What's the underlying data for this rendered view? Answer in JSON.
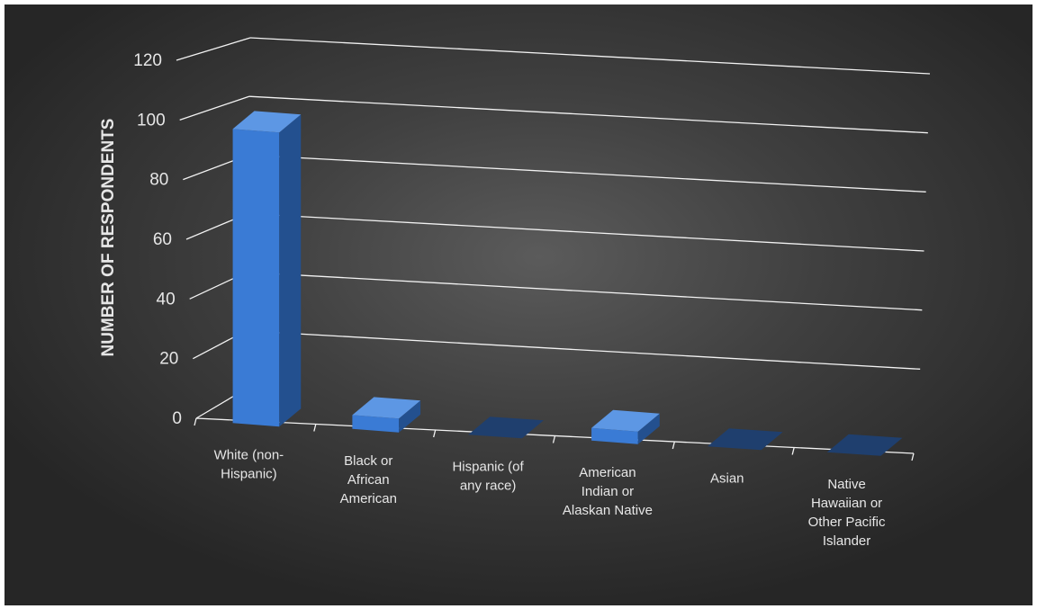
{
  "chart_data": {
    "type": "bar",
    "title": "",
    "xlabel": "",
    "ylabel": "NUMBER OF RESPONDENTS",
    "categories": [
      "White (non-Hispanic)",
      "Black or African American",
      "Hispanic (of any race)",
      "American Indian or Alaskan Native",
      "Asian",
      "Native Hawaiian or Other Pacific Islander"
    ],
    "category_label_lines": [
      [
        "White (non-",
        "Hispanic)"
      ],
      [
        "Black or",
        "African",
        "American"
      ],
      [
        "Hispanic (of",
        "any race)"
      ],
      [
        "American",
        "Indian or",
        "Alaskan Native"
      ],
      [
        "Asian"
      ],
      [
        "Native",
        "Hawaiian or",
        "Other Pacific",
        "Islander"
      ]
    ],
    "values": [
      106,
      5,
      0,
      2,
      0,
      0
    ],
    "ylim": [
      0,
      120
    ],
    "yticks": [
      "0",
      "20",
      "40",
      "60",
      "80",
      "100",
      "120"
    ],
    "grid": true,
    "legend": "none",
    "style": "3d-column",
    "colors": {
      "bar_front": "#3a7bd5",
      "bar_side": "#23508f",
      "bar_top": "#5d97e4",
      "empty_bar": "#1f3f6e",
      "gridline": "#f2f2f2",
      "text": "#e6e6e6"
    }
  }
}
